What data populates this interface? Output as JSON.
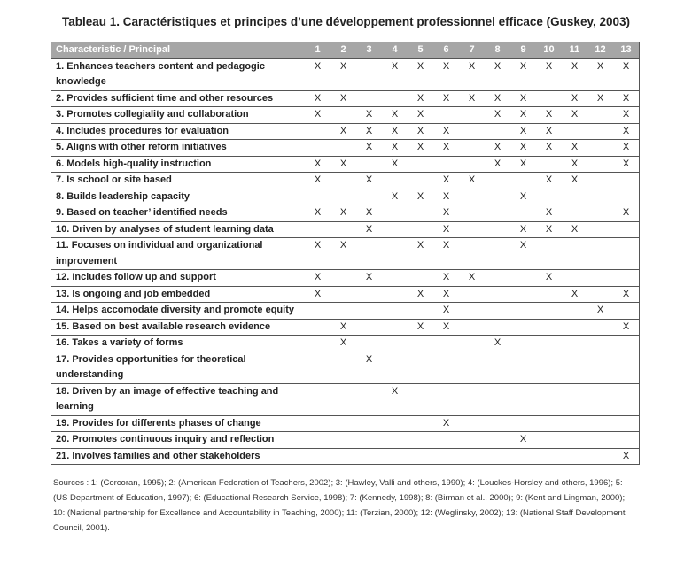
{
  "title": "Tableau 1. Caractéristiques et principes d’une développement professionnel efficace (Guskey, 2003)",
  "table": {
    "header": {
      "label": "Characteristic / Principal",
      "columns": [
        1,
        2,
        3,
        4,
        5,
        6,
        7,
        8,
        9,
        10,
        11,
        12,
        13
      ]
    },
    "rows": [
      {
        "label": "1. Enhances teachers content and pedagogic knowledge",
        "cells": [
          "X",
          "X",
          null,
          "X",
          "X",
          "X",
          "X",
          "X",
          "X",
          "X",
          "X",
          "X",
          "X"
        ]
      },
      {
        "label": "2. Provides sufficient time and other resources",
        "cells": [
          "X",
          "X",
          null,
          null,
          "X",
          "X",
          "X",
          "X",
          "X",
          null,
          "X",
          "X",
          "X"
        ]
      },
      {
        "label": "3. Promotes collegiality and collaboration",
        "cells": [
          "X",
          null,
          "X",
          "X",
          "X",
          null,
          null,
          "X",
          "X",
          "X",
          "X",
          null,
          "X"
        ]
      },
      {
        "label": "4. Includes procedures for evaluation",
        "cells": [
          null,
          "X",
          "X",
          "X",
          "X",
          "X",
          null,
          null,
          "X",
          "X",
          null,
          null,
          "X"
        ]
      },
      {
        "label": "5. Aligns with other reform initiatives",
        "cells": [
          null,
          null,
          "X",
          "X",
          "X",
          "X",
          null,
          "X",
          "X",
          "X",
          "X",
          null,
          "X"
        ]
      },
      {
        "label": "6. Models high-quality instruction",
        "cells": [
          "X",
          "X",
          null,
          "X",
          null,
          null,
          null,
          "X",
          "X",
          null,
          "X",
          null,
          "X"
        ]
      },
      {
        "label": "7. Is school or site based",
        "cells": [
          "X",
          null,
          "X",
          null,
          null,
          "X",
          "X",
          null,
          null,
          "X",
          "X",
          null,
          null
        ]
      },
      {
        "label": "8. Builds leadership capacity",
        "cells": [
          null,
          null,
          null,
          "X",
          "X",
          "X",
          null,
          null,
          "X",
          null,
          null,
          null,
          null
        ]
      },
      {
        "label": "9. Based on teacher’ identified needs",
        "cells": [
          "X",
          "X",
          "X",
          null,
          null,
          "X",
          null,
          null,
          null,
          "X",
          null,
          null,
          "X"
        ]
      },
      {
        "label": "10. Driven by analyses of student learning data",
        "cells": [
          null,
          null,
          "X",
          null,
          null,
          "X",
          null,
          null,
          "X",
          "X",
          "X",
          null,
          null
        ]
      },
      {
        "label": "11. Focuses on individual and organizational improvement",
        "cells": [
          "X",
          "X",
          null,
          null,
          "X",
          "X",
          null,
          null,
          "X",
          null,
          null,
          null,
          null
        ]
      },
      {
        "label": "12. Includes follow up and support",
        "cells": [
          "X",
          null,
          "X",
          null,
          null,
          "X",
          "X",
          null,
          null,
          "X",
          null,
          null,
          null
        ]
      },
      {
        "label": "13. Is ongoing and job embedded",
        "cells": [
          "X",
          null,
          null,
          null,
          "X",
          "X",
          null,
          null,
          null,
          null,
          "X",
          null,
          "X"
        ]
      },
      {
        "label": "14. Helps accomodate diversity and promote equity",
        "cells": [
          null,
          null,
          null,
          null,
          null,
          "X",
          null,
          null,
          null,
          null,
          null,
          "X",
          null
        ]
      },
      {
        "label": "15. Based on best available research evidence",
        "cells": [
          null,
          "X",
          null,
          null,
          "X",
          "X",
          null,
          null,
          null,
          null,
          null,
          null,
          "X"
        ]
      },
      {
        "label": "16. Takes a variety of forms",
        "cells": [
          null,
          "X",
          null,
          null,
          null,
          null,
          null,
          "X",
          null,
          null,
          null,
          null,
          null
        ]
      },
      {
        "label": "17. Provides opportunities for theoretical understanding",
        "cells": [
          null,
          null,
          "X",
          null,
          null,
          null,
          null,
          null,
          null,
          null,
          null,
          null,
          null
        ]
      },
      {
        "label": "18. Driven by an image of effective teaching and learning",
        "cells": [
          null,
          null,
          null,
          "X",
          null,
          null,
          null,
          null,
          null,
          null,
          null,
          null,
          null
        ]
      },
      {
        "label": "19. Provides for differents phases of change",
        "cells": [
          null,
          null,
          null,
          null,
          null,
          "X",
          null,
          null,
          null,
          null,
          null,
          null,
          null
        ]
      },
      {
        "label": "20. Promotes continuous inquiry and reflection",
        "cells": [
          null,
          null,
          null,
          null,
          null,
          null,
          null,
          null,
          "X",
          null,
          null,
          null,
          null
        ]
      },
      {
        "label": "21. Involves families and other stakeholders",
        "cells": [
          null,
          null,
          null,
          null,
          null,
          null,
          null,
          null,
          null,
          null,
          null,
          null,
          "X"
        ]
      }
    ]
  },
  "sources": "Sources : 1: (Corcoran, 1995); 2: (American Federation of Teachers, 2002); 3: (Hawley, Valli and others, 1990); 4: (Louckes-Horsley and others, 1996); 5: (US Department of Education, 1997); 6: (Educational Research Service, 1998); 7: (Kennedy, 1998); 8: (Birman et al., 2000); 9: (Kent and Lingman, 2000); 10: (National partnership for Excellence and Accountability in Teaching, 2000); 11: (Terzian, 2000); 12: (Weglinsky, 2002); 13: (National Staff Development Council, 2001)."
}
